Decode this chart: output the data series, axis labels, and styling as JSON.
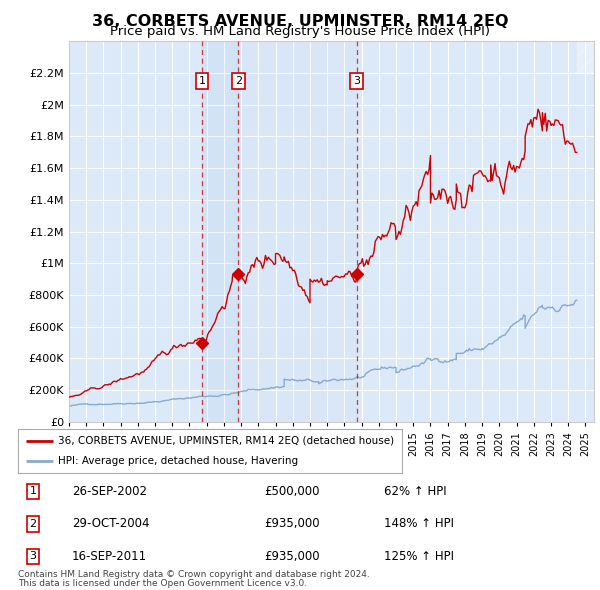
{
  "title": "36, CORBETS AVENUE, UPMINSTER, RM14 2EQ",
  "subtitle": "Price paid vs. HM Land Registry's House Price Index (HPI)",
  "title_fontsize": 11.5,
  "subtitle_fontsize": 9.5,
  "xlim": [
    1995.0,
    2025.5
  ],
  "ylim": [
    0,
    2400000
  ],
  "yticks": [
    0,
    200000,
    400000,
    600000,
    800000,
    1000000,
    1200000,
    1400000,
    1600000,
    1800000,
    2000000,
    2200000
  ],
  "ytick_labels": [
    "£0",
    "£200K",
    "£400K",
    "£600K",
    "£800K",
    "£1M",
    "£1.2M",
    "£1.4M",
    "£1.6M",
    "£1.8M",
    "£2M",
    "£2.2M"
  ],
  "xticks": [
    1995,
    1996,
    1997,
    1998,
    1999,
    2000,
    2001,
    2002,
    2003,
    2004,
    2005,
    2006,
    2007,
    2008,
    2009,
    2010,
    2011,
    2012,
    2013,
    2014,
    2015,
    2016,
    2017,
    2018,
    2019,
    2020,
    2021,
    2022,
    2023,
    2024,
    2025
  ],
  "background_color": "#dce9f8",
  "outer_bg_color": "#ffffff",
  "red_line_color": "#cc0000",
  "blue_line_color": "#88aacc",
  "grid_color": "#ffffff",
  "sale_events": [
    {
      "num": 1,
      "year": 2002.73,
      "price": 500000,
      "date": "26-SEP-2002",
      "pct": "62%",
      "arrow": "↑"
    },
    {
      "num": 2,
      "year": 2004.83,
      "price": 935000,
      "date": "29-OCT-2004",
      "pct": "148%",
      "arrow": "↑"
    },
    {
      "num": 3,
      "year": 2011.71,
      "price": 935000,
      "date": "16-SEP-2011",
      "pct": "125%",
      "arrow": "↑"
    }
  ],
  "legend_line1": "36, CORBETS AVENUE, UPMINSTER, RM14 2EQ (detached house)",
  "legend_line2": "HPI: Average price, detached house, Havering",
  "footer1": "Contains HM Land Registry data © Crown copyright and database right 2024.",
  "footer2": "This data is licensed under the Open Government Licence v3.0."
}
